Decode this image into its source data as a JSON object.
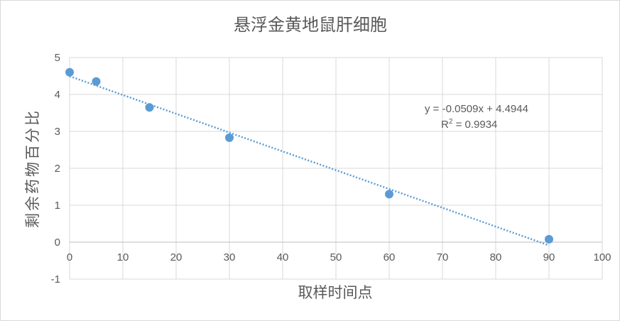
{
  "chart_data": {
    "type": "scatter",
    "title": "悬浮金黄地鼠肝细胞",
    "xlabel": "取样时间点",
    "ylabel": "剩余药物百分比",
    "xlim": [
      0,
      100
    ],
    "ylim": [
      -1,
      5
    ],
    "x_ticks": [
      "0",
      "10",
      "20",
      "30",
      "40",
      "50",
      "60",
      "70",
      "80",
      "90",
      "100"
    ],
    "y_ticks": [
      "-1",
      "0",
      "1",
      "2",
      "3",
      "4",
      "5"
    ],
    "grid": true,
    "series": [
      {
        "x": [
          0,
          5,
          15,
          30,
          60,
          90
        ],
        "y": [
          4.6,
          4.35,
          3.65,
          2.83,
          1.3,
          0.08
        ],
        "color": "#5b9bd5"
      }
    ],
    "trendline": {
      "type": "linear",
      "slope": -0.0509,
      "intercept": 4.4944,
      "color": "#5b9bd5",
      "equation": "y = -0.0509x + 4.4944",
      "r2_label": "R",
      "r2_sup": "2",
      "r2_value": " = 0.9934"
    }
  }
}
